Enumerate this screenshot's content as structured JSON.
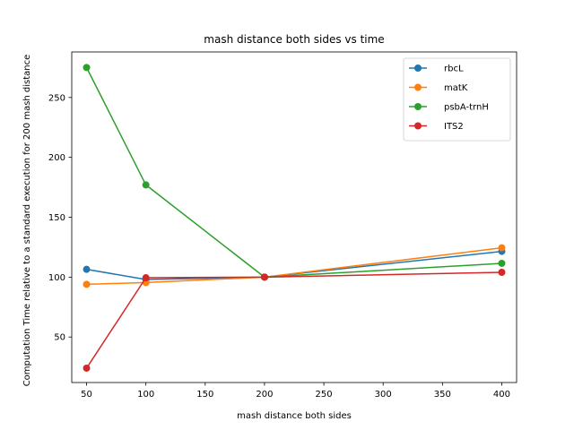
{
  "chart_data": {
    "type": "line",
    "title": "mash distance both sides vs time",
    "xlabel": "mash distance both sides",
    "ylabel": "Computation Time relative to a standard execution for 200 mash distance",
    "x": [
      50,
      100,
      200,
      400
    ],
    "xlim": [
      37.5,
      412.5
    ],
    "ylim": [
      12,
      288
    ],
    "xticks": [
      50,
      100,
      150,
      200,
      250,
      300,
      350,
      400
    ],
    "yticks": [
      50,
      100,
      150,
      200,
      250
    ],
    "grid": false,
    "legend_position": "top-right",
    "series": [
      {
        "name": "rbcL",
        "color": "#1f77b4",
        "values": [
          106.5,
          98,
          100,
          121.5
        ]
      },
      {
        "name": "matK",
        "color": "#ff7f0e",
        "values": [
          94,
          95.5,
          100,
          124.5
        ]
      },
      {
        "name": "psbA-trnH",
        "color": "#2ca02c",
        "values": [
          275,
          177,
          100,
          111.5
        ]
      },
      {
        "name": "ITS2",
        "color": "#d62728",
        "values": [
          24,
          99.5,
          100,
          104
        ]
      }
    ]
  }
}
